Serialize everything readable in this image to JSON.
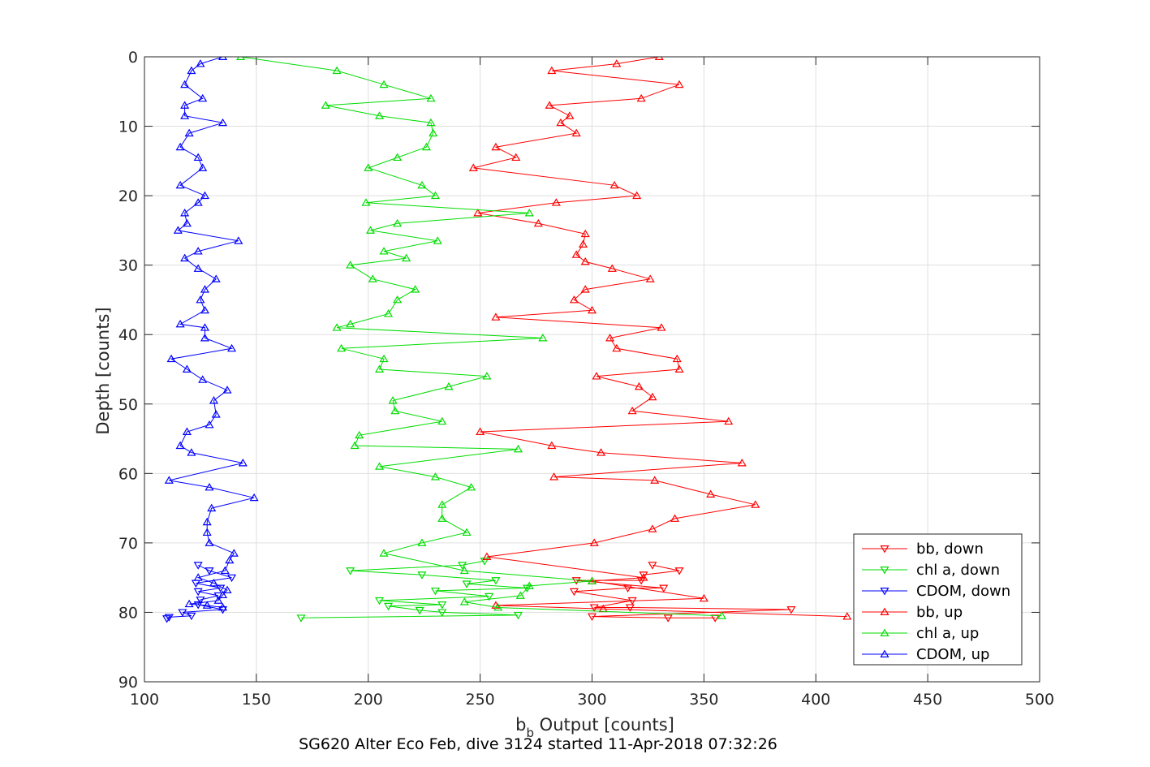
{
  "chart_data": {
    "type": "line",
    "caption": "SG620 Alter Eco Feb, dive 3124 started 11-Apr-2018 07:32:26",
    "xlabel_main": "b",
    "xlabel_sub": "b",
    "xlabel_rest": " Output [counts]",
    "ylabel": "Depth [counts]",
    "xlim": [
      100,
      500
    ],
    "ylim": [
      0,
      90
    ],
    "y_reversed": true,
    "grid": true,
    "legend_position": "bottom-right",
    "xticks": [
      "100",
      "150",
      "200",
      "250",
      "300",
      "350",
      "400",
      "450",
      "500"
    ],
    "yticks": [
      "0",
      "10",
      "20",
      "30",
      "40",
      "50",
      "60",
      "70",
      "80",
      "90"
    ],
    "series": [
      {
        "name": "bb, down",
        "color": "#ff0000",
        "marker": "triangle-down",
        "points": [
          [
            327,
            73.2
          ],
          [
            339,
            74
          ],
          [
            323,
            74.6
          ],
          [
            322,
            75.4
          ],
          [
            293,
            75.4
          ],
          [
            332,
            76.5
          ],
          [
            316,
            76.5
          ],
          [
            292,
            77
          ],
          [
            318,
            78.3
          ],
          [
            301,
            79.3
          ],
          [
            317,
            79.3
          ],
          [
            389,
            79.6
          ],
          [
            300,
            80.6
          ],
          [
            334,
            80.8
          ],
          [
            355,
            80.8
          ]
        ]
      },
      {
        "name": "chl a, down",
        "color": "#00dd00",
        "marker": "triangle-down",
        "points": [
          [
            252,
            72.6
          ],
          [
            242,
            73.2
          ],
          [
            192,
            74
          ],
          [
            224,
            74.6
          ],
          [
            257,
            75.4
          ],
          [
            244,
            75.9
          ],
          [
            271,
            76.5
          ],
          [
            230,
            76.9
          ],
          [
            254,
            77.7
          ],
          [
            205,
            78.3
          ],
          [
            233,
            78.9
          ],
          [
            209,
            79.1
          ],
          [
            223,
            79.7
          ],
          [
            233,
            80
          ],
          [
            267,
            80.4
          ],
          [
            170,
            80.8
          ]
        ]
      },
      {
        "name": "CDOM, down",
        "color": "#0000ff",
        "marker": "triangle-down",
        "points": [
          [
            124,
            73.2
          ],
          [
            129,
            74
          ],
          [
            139,
            75
          ],
          [
            123,
            75.8
          ],
          [
            134,
            76.5
          ],
          [
            124,
            77
          ],
          [
            133,
            77.6
          ],
          [
            125,
            78.2
          ],
          [
            124,
            78.9
          ],
          [
            135,
            79.6
          ],
          [
            117,
            80
          ],
          [
            121,
            80.5
          ],
          [
            111,
            80.7
          ],
          [
            110,
            80.9
          ]
        ]
      },
      {
        "name": "bb, up",
        "color": "#ff0000",
        "marker": "triangle-up",
        "points": [
          [
            414,
            80.6
          ],
          [
            305,
            79.5
          ],
          [
            257,
            79
          ],
          [
            350,
            78
          ],
          [
            300,
            75.5
          ],
          [
            323,
            75
          ],
          [
            253,
            72
          ],
          [
            301,
            70
          ],
          [
            327,
            68
          ],
          [
            337,
            66.5
          ],
          [
            373,
            64.5
          ],
          [
            353,
            63
          ],
          [
            328,
            61
          ],
          [
            283,
            60.5
          ],
          [
            367,
            58.5
          ],
          [
            304,
            57
          ],
          [
            282,
            56
          ],
          [
            250,
            54
          ],
          [
            361,
            52.5
          ],
          [
            318,
            51
          ],
          [
            327,
            49
          ],
          [
            321,
            47.5
          ],
          [
            302,
            46
          ],
          [
            339,
            45
          ],
          [
            338,
            43.5
          ],
          [
            311,
            42
          ],
          [
            308,
            40.5
          ],
          [
            331,
            39
          ],
          [
            257,
            37.5
          ],
          [
            300,
            36.5
          ],
          [
            292,
            35
          ],
          [
            297,
            33.5
          ],
          [
            326,
            32
          ],
          [
            309,
            30.5
          ],
          [
            297,
            29.5
          ],
          [
            293,
            28.5
          ],
          [
            296,
            27
          ],
          [
            297,
            25.5
          ],
          [
            276,
            24
          ],
          [
            249,
            22.5
          ],
          [
            284,
            21
          ],
          [
            320,
            20
          ],
          [
            310,
            18.5
          ],
          [
            247,
            16
          ],
          [
            266,
            14.5
          ],
          [
            257,
            13
          ],
          [
            293,
            11
          ],
          [
            286,
            9.5
          ],
          [
            290,
            8.5
          ],
          [
            281,
            7
          ],
          [
            322,
            6
          ],
          [
            339,
            4
          ],
          [
            282,
            2
          ],
          [
            311,
            1
          ],
          [
            330,
            0
          ]
        ]
      },
      {
        "name": "chl a, up",
        "color": "#00dd00",
        "marker": "triangle-up",
        "points": [
          [
            358,
            80.5
          ],
          [
            258,
            79.3
          ],
          [
            243,
            78.5
          ],
          [
            268,
            77.6
          ],
          [
            272,
            76.2
          ],
          [
            300,
            75.5
          ],
          [
            243,
            74
          ],
          [
            207,
            71.5
          ],
          [
            224,
            70
          ],
          [
            244,
            68.5
          ],
          [
            233,
            66.5
          ],
          [
            233,
            64.5
          ],
          [
            246,
            62
          ],
          [
            230,
            60.5
          ],
          [
            205,
            59
          ],
          [
            267,
            56.5
          ],
          [
            194,
            56
          ],
          [
            196,
            54.5
          ],
          [
            233,
            52.5
          ],
          [
            212,
            51
          ],
          [
            211,
            49.5
          ],
          [
            236,
            47.5
          ],
          [
            253,
            46
          ],
          [
            205,
            45
          ],
          [
            207,
            43.5
          ],
          [
            188,
            42
          ],
          [
            278,
            40.5
          ],
          [
            186,
            39
          ],
          [
            192,
            38.5
          ],
          [
            209,
            37
          ],
          [
            213,
            35
          ],
          [
            221,
            33.5
          ],
          [
            202,
            32
          ],
          [
            192,
            30
          ],
          [
            217,
            29
          ],
          [
            207,
            28
          ],
          [
            231,
            26.5
          ],
          [
            201,
            25
          ],
          [
            213,
            24
          ],
          [
            272,
            22.5
          ],
          [
            199,
            21
          ],
          [
            230,
            20
          ],
          [
            224,
            18.5
          ],
          [
            200,
            16
          ],
          [
            213,
            14.5
          ],
          [
            226,
            13
          ],
          [
            229,
            11
          ],
          [
            228,
            9.5
          ],
          [
            205,
            8.5
          ],
          [
            181,
            7
          ],
          [
            228,
            6
          ],
          [
            207,
            4
          ],
          [
            186,
            2
          ],
          [
            143,
            0
          ]
        ]
      },
      {
        "name": "CDOM, up",
        "color": "#0000ff",
        "marker": "triangle-up",
        "points": [
          [
            135,
            79.3
          ],
          [
            128,
            79
          ],
          [
            120,
            78.8
          ],
          [
            133,
            78.3
          ],
          [
            135,
            77.5
          ],
          [
            137,
            76.8
          ],
          [
            131,
            75.8
          ],
          [
            124,
            75
          ],
          [
            136,
            74
          ],
          [
            138,
            72.5
          ],
          [
            140,
            71.5
          ],
          [
            129,
            70
          ],
          [
            128,
            68.5
          ],
          [
            128,
            67
          ],
          [
            130,
            65
          ],
          [
            149,
            63.5
          ],
          [
            129,
            62
          ],
          [
            111,
            61
          ],
          [
            144,
            58.5
          ],
          [
            121,
            57
          ],
          [
            116,
            56
          ],
          [
            119,
            54
          ],
          [
            129,
            53
          ],
          [
            132,
            51.5
          ],
          [
            131,
            49.5
          ],
          [
            137,
            48
          ],
          [
            126,
            46.5
          ],
          [
            119,
            45
          ],
          [
            112,
            43.5
          ],
          [
            139,
            42
          ],
          [
            127,
            40.5
          ],
          [
            127,
            39
          ],
          [
            116,
            38.5
          ],
          [
            127,
            36.5
          ],
          [
            125,
            35
          ],
          [
            127,
            33.5
          ],
          [
            132,
            32
          ],
          [
            124,
            30.5
          ],
          [
            118,
            29
          ],
          [
            124,
            28
          ],
          [
            142,
            26.5
          ],
          [
            115,
            25
          ],
          [
            119,
            24
          ],
          [
            118,
            22.5
          ],
          [
            124,
            21
          ],
          [
            127,
            20
          ],
          [
            116,
            18.5
          ],
          [
            126,
            16
          ],
          [
            124,
            14.5
          ],
          [
            116,
            13
          ],
          [
            120,
            11
          ],
          [
            135,
            9.5
          ],
          [
            118,
            8.5
          ],
          [
            118,
            7
          ],
          [
            126,
            6
          ],
          [
            118,
            4
          ],
          [
            121,
            2
          ],
          [
            125,
            1
          ],
          [
            135,
            0
          ]
        ]
      }
    ]
  }
}
